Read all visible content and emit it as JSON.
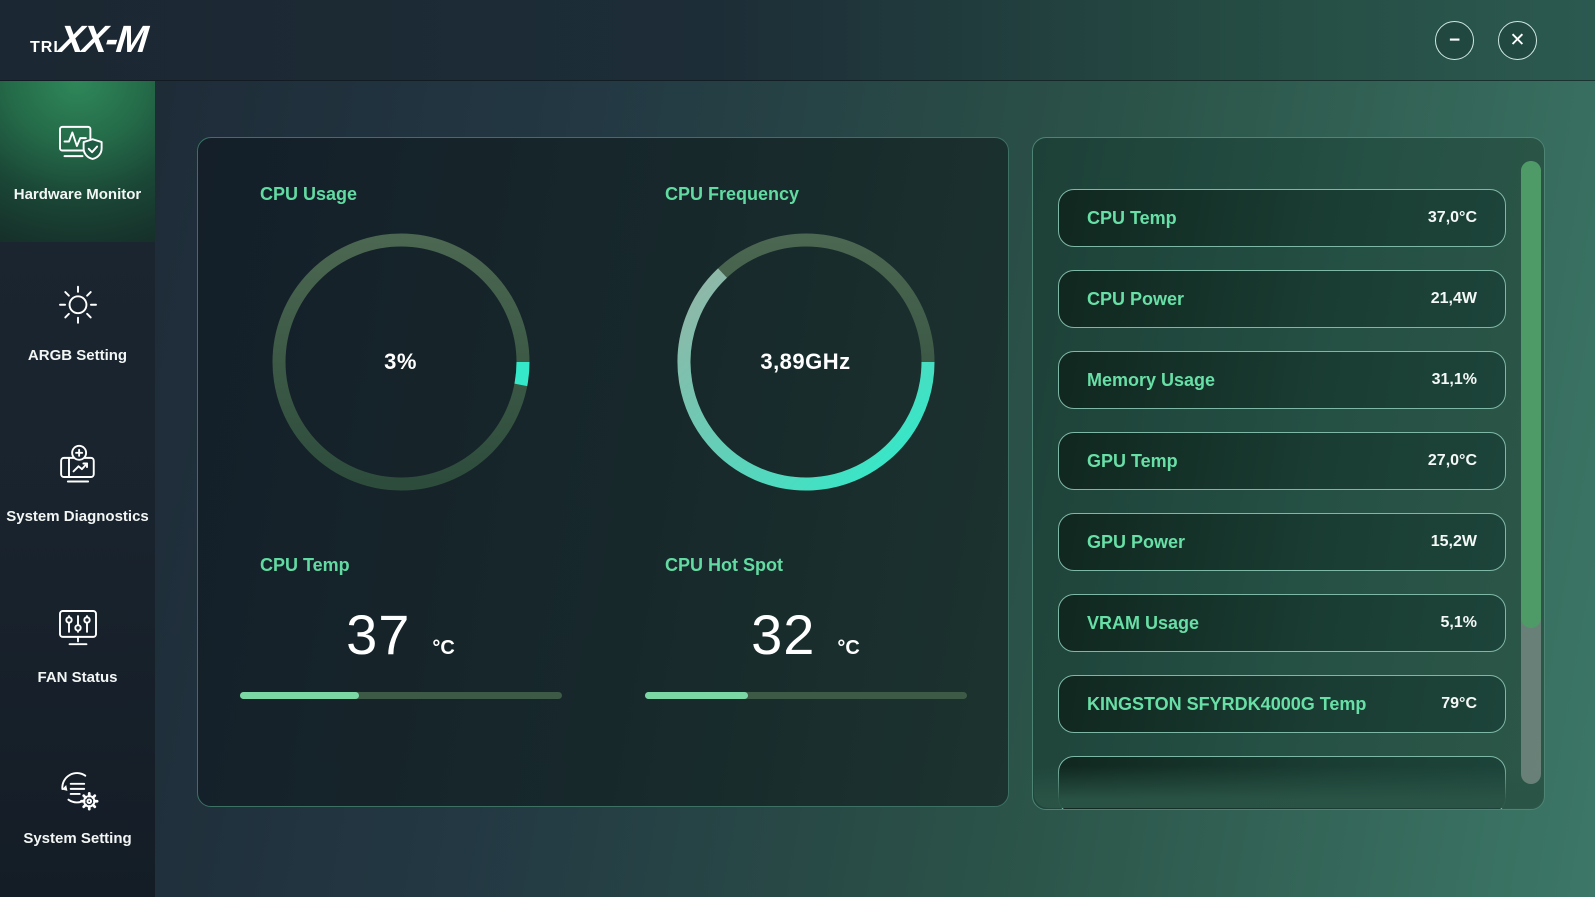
{
  "topbar": {
    "logo_prefix": "TRI",
    "logo_main": "XX-M",
    "minimize_glyph": "−",
    "close_glyph": "✕"
  },
  "sidebar": {
    "items": [
      {
        "label": "Hardware Monitor",
        "icon": "hardware-monitor-icon",
        "active": true
      },
      {
        "label": "ARGB Setting",
        "icon": "argb-icon",
        "active": false
      },
      {
        "label": "System Diagnostics",
        "icon": "system-diagnostics-icon",
        "active": false
      },
      {
        "label": "FAN Status",
        "icon": "fan-status-icon",
        "active": false
      },
      {
        "label": "System Setting",
        "icon": "system-setting-icon",
        "active": false
      }
    ]
  },
  "monitor": {
    "gauges": [
      {
        "label": "CPU Usage",
        "display": "3%",
        "percent": 3,
        "arc_start_color": "#35e8c9",
        "arc_end_color": "#35e8c9"
      },
      {
        "label": "CPU Frequency",
        "display": "3,89GHz",
        "percent": 63,
        "arc_start_color": "#35e8c9",
        "arc_end_color": "#93b5a6"
      }
    ],
    "temps": [
      {
        "label": "CPU Temp",
        "value": "37",
        "unit": "°C",
        "percent": 37
      },
      {
        "label": "CPU Hot Spot",
        "value": "32",
        "unit": "°C",
        "percent": 32
      }
    ]
  },
  "stats": {
    "rows": [
      {
        "label": "CPU Temp",
        "value": "37,0°C"
      },
      {
        "label": "CPU Power",
        "value": "21,4W"
      },
      {
        "label": "Memory Usage",
        "value": "31,1%"
      },
      {
        "label": "GPU Temp",
        "value": "27,0°C"
      },
      {
        "label": "GPU Power",
        "value": "15,2W"
      },
      {
        "label": "VRAM Usage",
        "value": "5,1%"
      },
      {
        "label": "KINGSTON SFYRDK4000G Temp",
        "value": "79°C"
      }
    ],
    "partial_row_visible": true
  },
  "colors": {
    "accent_mint": "#68dfa6",
    "arc_cyan": "#35e8c9",
    "bar_fill": "#7bd8a4",
    "track_top": "#4b6751",
    "track_bottom": "#2e4c3c",
    "scroll_thumb": "#4f9b68"
  }
}
